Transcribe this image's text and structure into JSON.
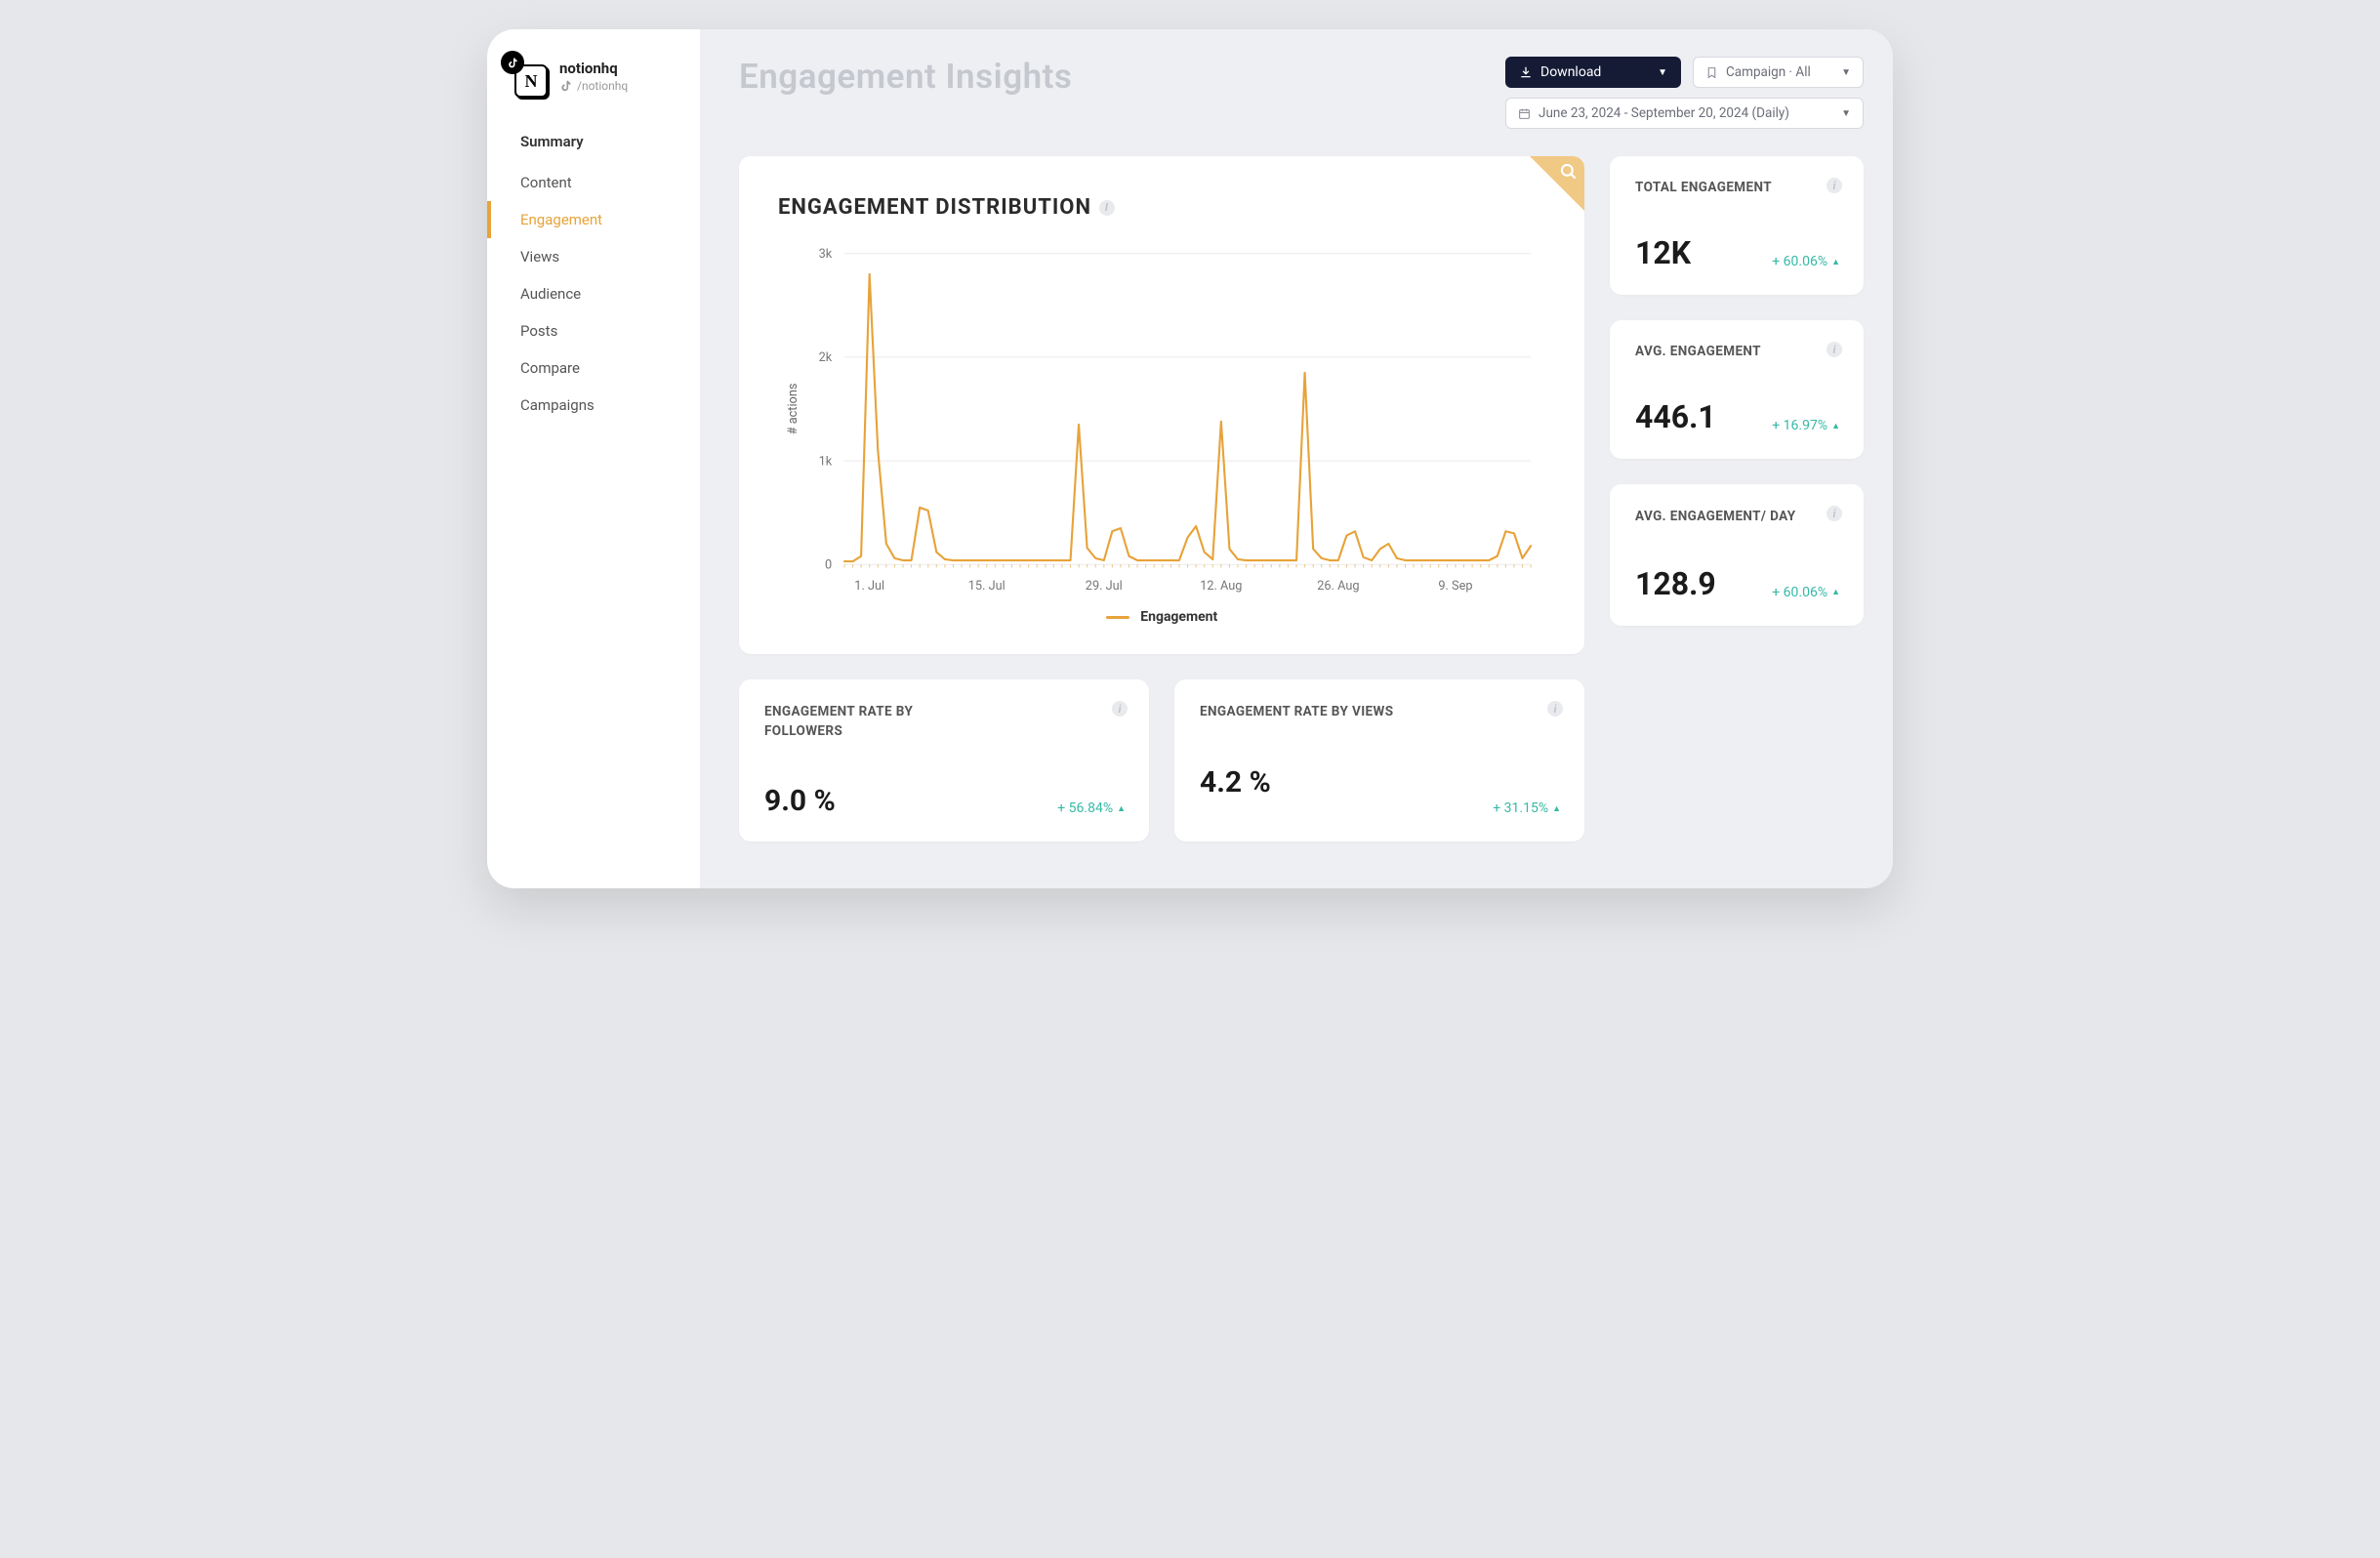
{
  "profile": {
    "name": "notionhq",
    "handle": "/notionhq",
    "logo_letter": "N"
  },
  "sidebar": {
    "items": [
      {
        "label": "Summary",
        "primary": true,
        "active": false
      },
      {
        "label": "Content",
        "primary": false,
        "active": false
      },
      {
        "label": "Engagement",
        "primary": false,
        "active": true
      },
      {
        "label": "Views",
        "primary": false,
        "active": false
      },
      {
        "label": "Audience",
        "primary": false,
        "active": false
      },
      {
        "label": "Posts",
        "primary": false,
        "active": false
      },
      {
        "label": "Compare",
        "primary": false,
        "active": false
      },
      {
        "label": "Campaigns",
        "primary": false,
        "active": false
      }
    ]
  },
  "header": {
    "title": "Engagement Insights",
    "download_label": "Download",
    "campaign_label": "Campaign · All",
    "date_label": "June 23, 2024 - September 20, 2024 (Daily)"
  },
  "chart": {
    "type": "line",
    "title": "ENGAGEMENT DISTRIBUTION",
    "ylabel": "# actions",
    "legend_label": "Engagement",
    "ylim": [
      0,
      3000
    ],
    "ytick_step": 1000,
    "ytick_labels": [
      "0",
      "1k",
      "2k",
      "3k"
    ],
    "x_tick_indices": [
      3,
      17,
      31,
      45,
      59,
      73
    ],
    "x_tick_labels": [
      "1. Jul",
      "15. Jul",
      "29. Jul",
      "12. Aug",
      "26. Aug",
      "9. Sep"
    ],
    "n_points": 83,
    "values": [
      30,
      30,
      80,
      2800,
      1100,
      200,
      60,
      40,
      40,
      550,
      520,
      120,
      50,
      40,
      40,
      40,
      40,
      40,
      40,
      40,
      40,
      40,
      40,
      40,
      40,
      40,
      40,
      40,
      1350,
      160,
      60,
      40,
      320,
      350,
      80,
      40,
      40,
      40,
      40,
      40,
      40,
      260,
      370,
      120,
      50,
      1380,
      150,
      50,
      40,
      40,
      40,
      40,
      40,
      40,
      40,
      1850,
      150,
      60,
      40,
      40,
      280,
      320,
      70,
      40,
      150,
      200,
      60,
      40,
      40,
      40,
      40,
      40,
      40,
      40,
      40,
      40,
      40,
      40,
      80,
      320,
      300,
      60,
      180
    ],
    "line_color": "#e7a33a",
    "line_width": 2,
    "grid_color": "#ececec",
    "axis_color": "#999999",
    "label_fontsize": 12,
    "tick_fontsize": 12,
    "background_color": "#ffffff"
  },
  "kpis": {
    "total_engagement": {
      "title": "TOTAL ENGAGEMENT",
      "value": "12K",
      "delta": "+ 60.06%"
    },
    "avg_engagement": {
      "title": "AVG. ENGAGEMENT",
      "value": "446.1",
      "delta": "+ 16.97%"
    },
    "avg_engagement_day": {
      "title": "AVG. ENGAGEMENT/ DAY",
      "value": "128.9",
      "delta": "+ 60.06%"
    },
    "rate_followers": {
      "title": "ENGAGEMENT RATE BY FOLLOWERS",
      "value": "9.0 %",
      "delta": "+ 56.84%"
    },
    "rate_views": {
      "title": "ENGAGEMENT RATE BY VIEWS",
      "value": "4.2 %",
      "delta": "+ 31.15%"
    }
  },
  "colors": {
    "accent": "#e7a33a",
    "delta_positive": "#36b9a6",
    "card_bg": "#ffffff",
    "page_bg": "#eeeff2",
    "title_muted": "#c6c8cf",
    "download_bg": "#151b35"
  }
}
